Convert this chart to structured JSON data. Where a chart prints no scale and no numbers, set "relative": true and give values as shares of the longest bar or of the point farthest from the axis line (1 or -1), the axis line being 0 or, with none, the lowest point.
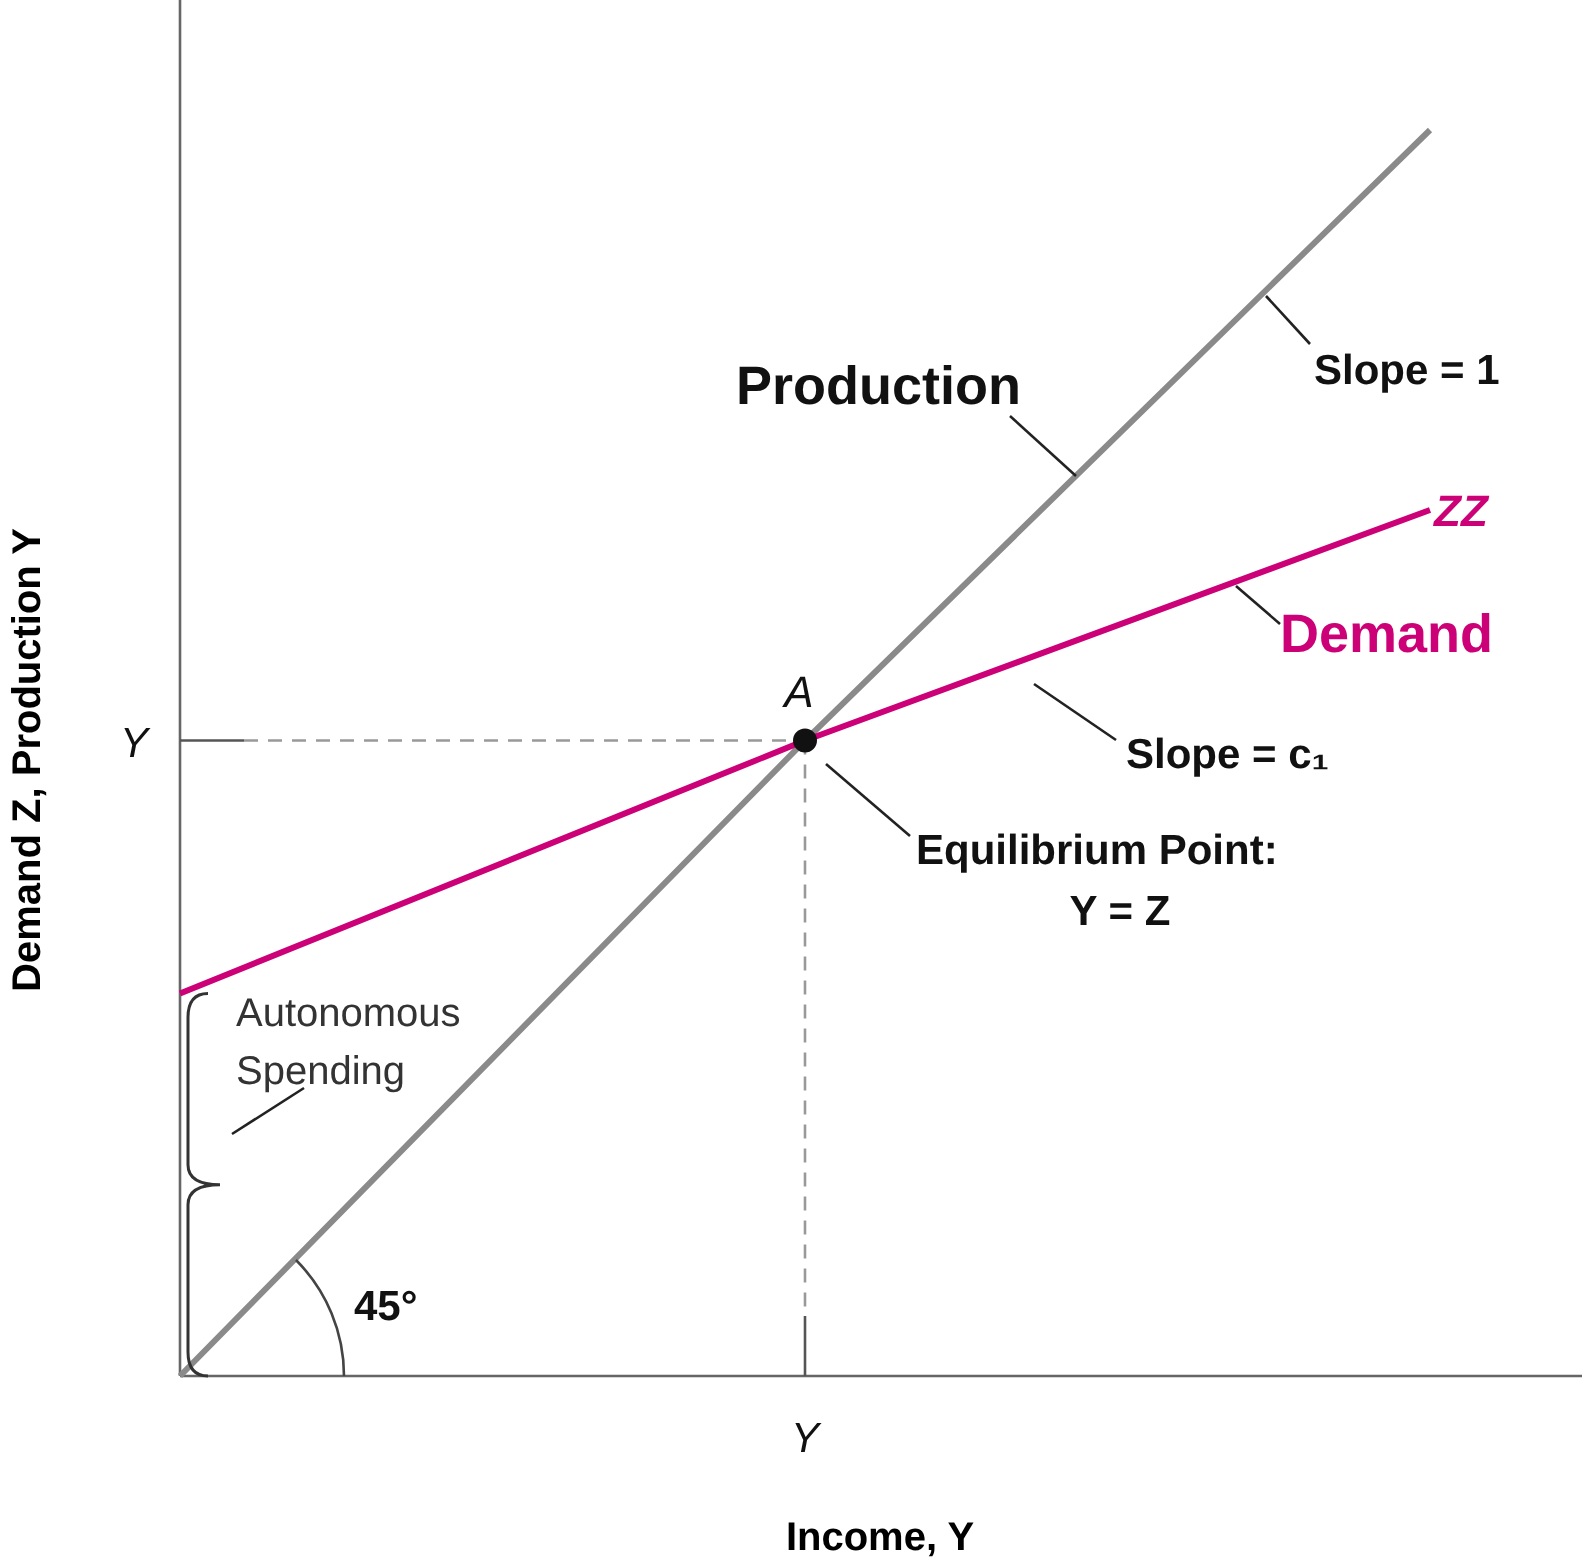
{
  "chart_data": {
    "type": "line",
    "relative": true,
    "xlabel": "Income, Y",
    "ylabel": "Demand Z, Production Y",
    "categories": [
      null,
      null,
      null
    ],
    "series": [
      {
        "color": "#8a8a8a",
        "values": [
          0,
          0.51,
          1
        ]
      },
      {
        "name": "ZZ",
        "color": "#cc0077",
        "values": [
          0.307,
          0.51,
          0.695
        ]
      }
    ],
    "annotations": [
      "Production",
      "Slope = 1",
      "Demand",
      "Slope = c₁",
      "A",
      "Equilibrium Point:\nY = Z",
      "Y",
      "Autonomous\nSpending",
      "45°",
      "Y"
    ]
  }
}
